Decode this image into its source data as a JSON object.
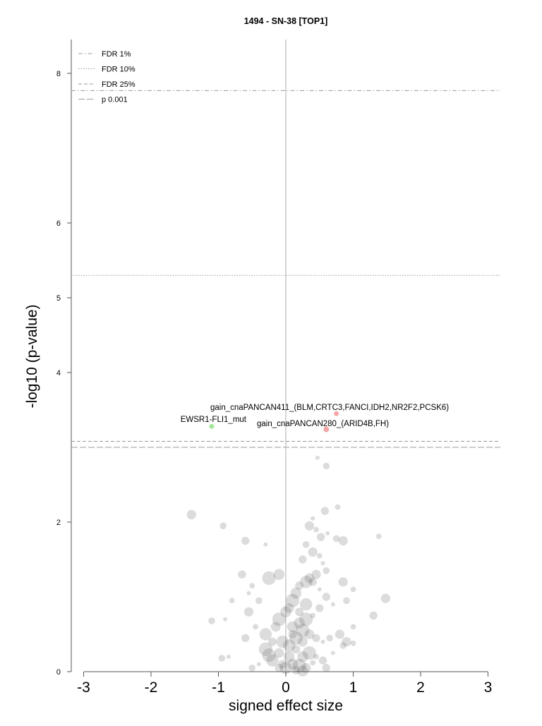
{
  "chart_data": {
    "type": "scatter",
    "title": "1494 - SN-38 [TOP1]",
    "xlabel": "signed effect size",
    "ylabel": "-log10 (p-value)",
    "xlim": [
      -3.15,
      3.15
    ],
    "ylim": [
      0,
      8.5
    ],
    "x_ticks": [
      -3,
      -2,
      -1,
      0,
      1,
      2,
      3
    ],
    "x_tick_labels": [
      "-3",
      "-2",
      "-1",
      "0",
      "1",
      "2",
      "3"
    ],
    "y_ticks": [
      0,
      2,
      4,
      5,
      6,
      8
    ],
    "y_tick_labels": [
      "0",
      "2",
      "4",
      "5",
      "6",
      "8"
    ],
    "grid": false,
    "legend_position": "top-left",
    "thresholds": [
      {
        "label": "FDR 1%",
        "y": 7.77,
        "dash": "6,3,1.5,3"
      },
      {
        "label": "FDR 10%",
        "y": 5.3,
        "dash": "1.5,2"
      },
      {
        "label": "FDR 25%",
        "y": 3.08,
        "dash": "5,3"
      },
      {
        "label": "p 0.001",
        "y": 3.0,
        "dash": "9,3"
      }
    ],
    "highlighted": [
      {
        "label": "gain_cnaPANCAN411_(BLM,CRTC3,FANCI,IDH2,NR2F2,PCSK6)",
        "x": 0.75,
        "y": 3.45,
        "color": "#f4a6a6",
        "r": 3.5
      },
      {
        "label": "gain_cnaPANCAN280_(ARID4B,FH)",
        "x": 0.6,
        "y": 3.24,
        "color": "#f4a6a6",
        "r": 4
      },
      {
        "label": "EWSR1-FLI1_mut",
        "x": -1.1,
        "y": 3.28,
        "color": "#a6e69c",
        "r": 3.5
      }
    ],
    "background_points": [
      [
        0.47,
        2.86
      ],
      [
        0.6,
        2.75
      ],
      [
        -1.4,
        2.1
      ],
      [
        0.77,
        2.2
      ],
      [
        0.58,
        2.15
      ],
      [
        0.4,
        2.05
      ],
      [
        -0.93,
        1.95
      ],
      [
        0.35,
        1.95
      ],
      [
        0.45,
        1.9
      ],
      [
        0.52,
        1.8
      ],
      [
        0.62,
        1.85
      ],
      [
        0.75,
        1.78
      ],
      [
        0.85,
        1.75
      ],
      [
        1.38,
        1.81
      ],
      [
        -0.6,
        1.75
      ],
      [
        -0.3,
        1.7
      ],
      [
        0.3,
        1.7
      ],
      [
        0.4,
        1.6
      ],
      [
        0.5,
        1.55
      ],
      [
        0.25,
        1.5
      ],
      [
        0.55,
        1.45
      ],
      [
        0.6,
        1.35
      ],
      [
        0.45,
        1.3
      ],
      [
        0.35,
        1.25
      ],
      [
        0.3,
        1.2
      ],
      [
        0.2,
        1.15
      ],
      [
        0.15,
        1.05
      ],
      [
        0.1,
        0.95
      ],
      [
        0.05,
        0.85
      ],
      [
        0.4,
        1.2
      ],
      [
        0.5,
        1.1
      ],
      [
        -0.1,
        1.3
      ],
      [
        -0.25,
        1.25
      ],
      [
        -0.5,
        1.15
      ],
      [
        -0.65,
        1.3
      ],
      [
        -0.55,
        1.05
      ],
      [
        -0.4,
        0.95
      ],
      [
        0.85,
        1.2
      ],
      [
        1.0,
        1.1
      ],
      [
        0.6,
        1.0
      ],
      [
        0.7,
        0.9
      ],
      [
        0.9,
        0.95
      ],
      [
        1.48,
        0.98
      ],
      [
        -0.8,
        0.95
      ],
      [
        0.3,
        0.9
      ],
      [
        0.2,
        0.8
      ],
      [
        0.0,
        0.8
      ],
      [
        -0.1,
        0.7
      ],
      [
        -0.15,
        0.6
      ],
      [
        -0.3,
        0.5
      ],
      [
        -0.2,
        0.4
      ],
      [
        0.1,
        0.6
      ],
      [
        0.25,
        0.55
      ],
      [
        0.35,
        0.5
      ],
      [
        0.45,
        0.45
      ],
      [
        0.55,
        0.4
      ],
      [
        0.65,
        0.45
      ],
      [
        0.8,
        0.5
      ],
      [
        1.0,
        0.6
      ],
      [
        1.3,
        0.75
      ],
      [
        -0.9,
        0.7
      ],
      [
        -1.1,
        0.68
      ],
      [
        -0.55,
        0.8
      ],
      [
        -0.45,
        0.6
      ],
      [
        -0.6,
        0.45
      ],
      [
        -0.85,
        0.2
      ],
      [
        -0.95,
        0.18
      ],
      [
        -0.3,
        0.3
      ],
      [
        -0.1,
        0.25
      ],
      [
        0.05,
        0.35
      ],
      [
        0.15,
        0.3
      ],
      [
        0.25,
        0.2
      ],
      [
        0.35,
        0.25
      ],
      [
        0.45,
        0.2
      ],
      [
        0.55,
        0.15
      ],
      [
        0.7,
        0.25
      ],
      [
        0.85,
        0.35
      ],
      [
        0.9,
        0.4
      ],
      [
        1.0,
        0.38
      ],
      [
        -0.2,
        0.15
      ],
      [
        -0.05,
        0.1
      ],
      [
        0.1,
        0.1
      ],
      [
        0.2,
        0.08
      ],
      [
        0.3,
        0.05
      ],
      [
        0.0,
        0.05
      ],
      [
        -0.1,
        0.05
      ],
      [
        0.05,
        0.2
      ],
      [
        -0.25,
        0.22
      ],
      [
        0.4,
        0.12
      ],
      [
        0.6,
        0.05
      ],
      [
        -0.4,
        0.1
      ],
      [
        -0.5,
        0.05
      ],
      [
        0.15,
        0.45
      ],
      [
        0.25,
        0.4
      ],
      [
        -0.05,
        0.4
      ],
      [
        0.1,
        0.5
      ],
      [
        0.2,
        0.65
      ],
      [
        0.3,
        0.7
      ],
      [
        0.4,
        0.75
      ],
      [
        0.5,
        0.85
      ],
      [
        0.15,
        0.02
      ],
      [
        0.25,
        0.01
      ]
    ]
  }
}
